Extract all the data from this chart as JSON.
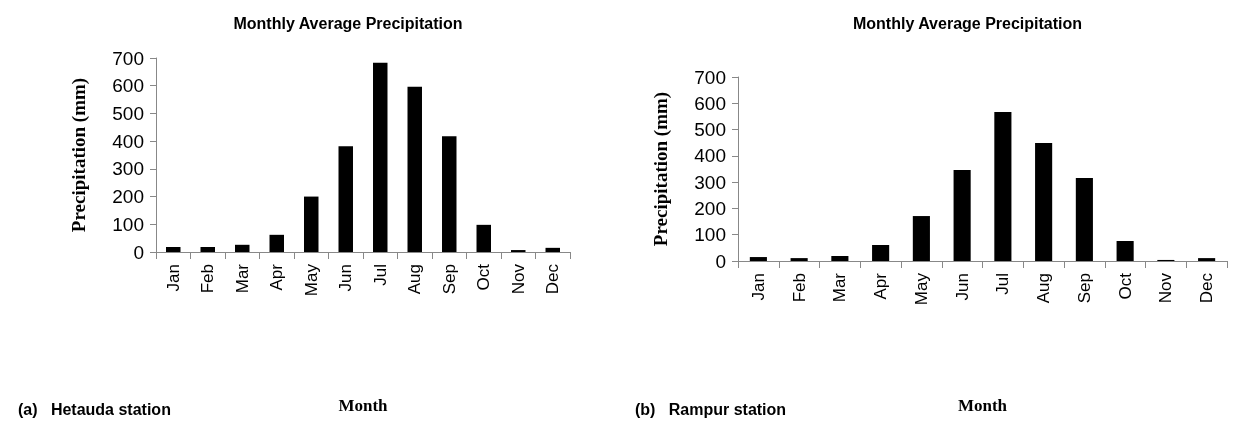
{
  "chart_data": [
    {
      "type": "bar",
      "title": "Monthly Average Precipitation",
      "xlabel": "Month",
      "ylabel": "Precipitation (mm)",
      "annotations": [
        "(a)   Hetauda station"
      ],
      "categories": [
        "Jan",
        "Feb",
        "Mar",
        "Apr",
        "May",
        "Jun",
        "Jul",
        "Aug",
        "Sep",
        "Oct",
        "Nov",
        "Dec"
      ],
      "values": [
        18,
        18,
        26,
        62,
        200,
        382,
        683,
        596,
        418,
        98,
        7,
        15
      ],
      "color": "#000000",
      "ylim": [
        0,
        700
      ],
      "yticks": [
        0,
        100,
        200,
        300,
        400,
        500,
        600,
        700
      ],
      "grid": false
    },
    {
      "type": "bar",
      "title": "Monthly Average Precipitation",
      "xlabel": "Month",
      "ylabel": "Precipitation (mm)",
      "annotations": [
        "(b)   Rampur station"
      ],
      "categories": [
        "Jan",
        "Feb",
        "Mar",
        "Apr",
        "May",
        "Jun",
        "Jul",
        "Aug",
        "Sep",
        "Oct",
        "Nov",
        "Dec"
      ],
      "values": [
        15,
        11,
        19,
        61,
        171,
        346,
        567,
        449,
        316,
        76,
        4,
        11
      ],
      "color": "#000000",
      "ylim": [
        0,
        700
      ],
      "yticks": [
        0,
        100,
        200,
        300,
        400,
        500,
        600,
        700
      ],
      "grid": false
    }
  ]
}
